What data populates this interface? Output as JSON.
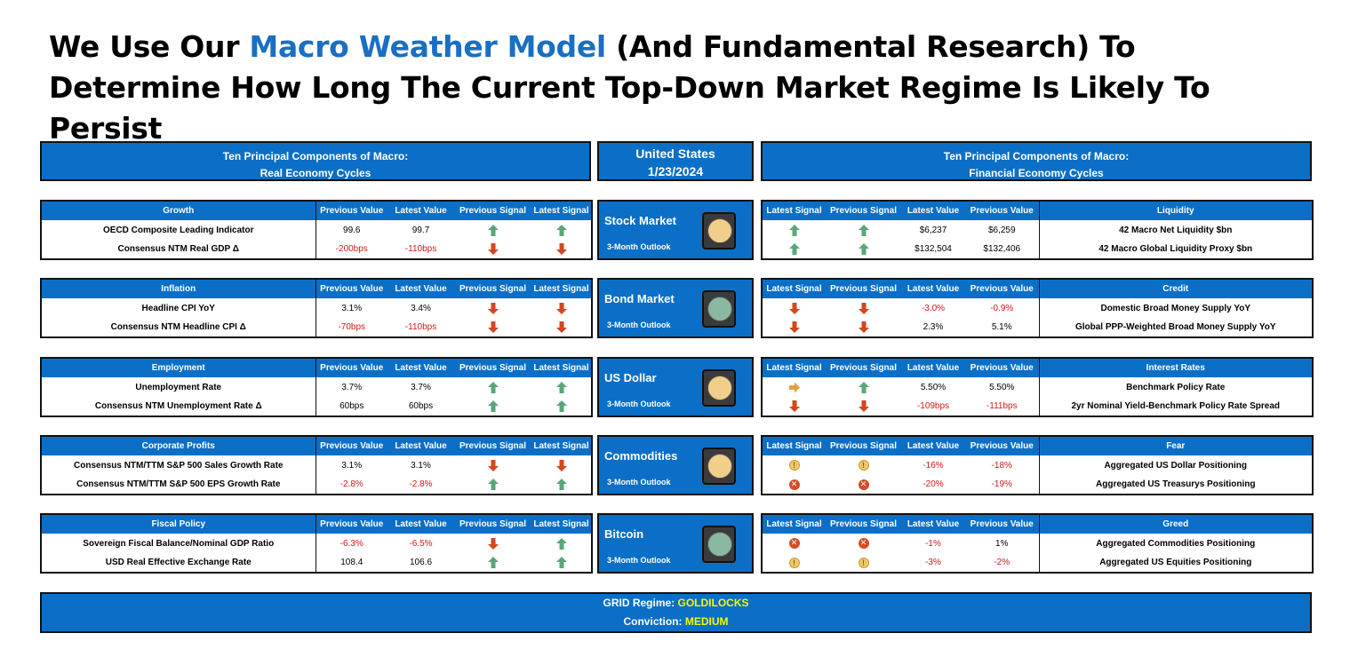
{
  "title": {
    "pre": "We Use Our ",
    "highlight": "Macro Weather Model",
    "post1": " (And Fundamental Research) To",
    "line2": "Determine How Long The Current Top-Down Market Regime Is Likely To Persist"
  },
  "headers": {
    "left_l1": "Ten Principal Components of Macro:",
    "left_l2": "Real Economy Cycles",
    "center_l1": "United States",
    "center_l2": "1/23/2024",
    "right_l1": "Ten Principal Components of Macro:",
    "right_l2": "Financial Economy Cycles"
  },
  "col_headers": {
    "prev_value": "Previous Value",
    "latest_value": "Latest Value",
    "prev_signal": "Previous Signal",
    "latest_signal": "Latest Signal"
  },
  "colors": {
    "accent": "#0b6fc7",
    "up": "#5aa67a",
    "down": "#d4461e",
    "neutral": "#e0a040",
    "negative_text": "#d01818",
    "regime_value": "#f7f700"
  },
  "left_panels": [
    {
      "category": "Growth",
      "rows": [
        {
          "label": "OECD Composite Leading Indicator",
          "prev": "99.6",
          "latest": "99.7",
          "prev_signal": "up",
          "latest_signal": "up",
          "prev_neg": false,
          "latest_neg": false
        },
        {
          "label": "Consensus NTM Real GDP Δ",
          "prev": "-200bps",
          "latest": "-110bps",
          "prev_signal": "down",
          "latest_signal": "down",
          "prev_neg": true,
          "latest_neg": true
        }
      ]
    },
    {
      "category": "Inflation",
      "rows": [
        {
          "label": "Headline CPI YoY",
          "prev": "3.1%",
          "latest": "3.4%",
          "prev_signal": "down",
          "latest_signal": "down",
          "prev_neg": false,
          "latest_neg": false
        },
        {
          "label": "Consensus NTM Headline CPI Δ",
          "prev": "-70bps",
          "latest": "-110bps",
          "prev_signal": "down",
          "latest_signal": "down",
          "prev_neg": true,
          "latest_neg": true
        }
      ]
    },
    {
      "category": "Employment",
      "rows": [
        {
          "label": "Unemployment Rate",
          "prev": "3.7%",
          "latest": "3.7%",
          "prev_signal": "up",
          "latest_signal": "up",
          "prev_neg": false,
          "latest_neg": false
        },
        {
          "label": "Consensus NTM Unemployment Rate Δ",
          "prev": "60bps",
          "latest": "60bps",
          "prev_signal": "up",
          "latest_signal": "up",
          "prev_neg": false,
          "latest_neg": false
        }
      ]
    },
    {
      "category": "Corporate Profits",
      "rows": [
        {
          "label": "Consensus NTM/TTM S&P 500 Sales Growth Rate",
          "prev": "3.1%",
          "latest": "3.1%",
          "prev_signal": "down",
          "latest_signal": "down",
          "prev_neg": false,
          "latest_neg": false
        },
        {
          "label": "Consensus NTM/TTM S&P 500 EPS Growth Rate",
          "prev": "-2.8%",
          "latest": "-2.8%",
          "prev_signal": "up",
          "latest_signal": "up",
          "prev_neg": true,
          "latest_neg": true
        }
      ]
    },
    {
      "category": "Fiscal Policy",
      "rows": [
        {
          "label": "Sovereign Fiscal Balance/Nominal GDP Ratio",
          "prev": "-6.3%",
          "latest": "-6.5%",
          "prev_signal": "down",
          "latest_signal": "up",
          "prev_neg": true,
          "latest_neg": true
        },
        {
          "label": "USD Real Effective Exchange Rate",
          "prev": "108.4",
          "latest": "106.6",
          "prev_signal": "up",
          "latest_signal": "up",
          "prev_neg": false,
          "latest_neg": false
        }
      ]
    }
  ],
  "markets": [
    {
      "name": "Stock Market",
      "outlook": "3-Month Outlook",
      "light": "#f1cf8a"
    },
    {
      "name": "Bond Market",
      "outlook": "3-Month Outlook",
      "light": "#8ab8a0"
    },
    {
      "name": "US Dollar",
      "outlook": "3-Month Outlook",
      "light": "#f1cf8a"
    },
    {
      "name": "Commodities",
      "outlook": "3-Month Outlook",
      "light": "#f1cf8a"
    },
    {
      "name": "Bitcoin",
      "outlook": "3-Month Outlook",
      "light": "#8ab8a0"
    }
  ],
  "right_panels": [
    {
      "category": "Liquidity",
      "rows": [
        {
          "latest_signal": "up",
          "prev_signal": "up",
          "latest": "$6,237",
          "prev": "$6,259",
          "label": "42 Macro Net Liquidity $bn",
          "latest_neg": false,
          "prev_neg": false
        },
        {
          "latest_signal": "up",
          "prev_signal": "up",
          "latest": "$132,504",
          "prev": "$132,406",
          "label": "42 Macro Global Liquidity Proxy $bn",
          "latest_neg": false,
          "prev_neg": false
        }
      ]
    },
    {
      "category": "Credit",
      "rows": [
        {
          "latest_signal": "down",
          "prev_signal": "down",
          "latest": "-3.0%",
          "prev": "-0.9%",
          "label": "Domestic Broad Money Supply YoY",
          "latest_neg": true,
          "prev_neg": true
        },
        {
          "latest_signal": "down",
          "prev_signal": "down",
          "latest": "2.3%",
          "prev": "5.1%",
          "label": "Global PPP-Weighted Broad Money Supply YoY",
          "latest_neg": false,
          "prev_neg": false
        }
      ]
    },
    {
      "category": "Interest Rates",
      "rows": [
        {
          "latest_signal": "right",
          "prev_signal": "up",
          "latest": "5.50%",
          "prev": "5.50%",
          "label": "Benchmark Policy Rate",
          "latest_neg": false,
          "prev_neg": false
        },
        {
          "latest_signal": "down",
          "prev_signal": "down",
          "latest": "-109bps",
          "prev": "-111bps",
          "label": "2yr Nominal Yield-Benchmark Policy Rate Spread",
          "latest_neg": true,
          "prev_neg": true
        }
      ]
    },
    {
      "category": "Fear",
      "rows": [
        {
          "latest_signal": "warn",
          "prev_signal": "warn",
          "latest": "-16%",
          "prev": "-18%",
          "label": "Aggregated US Dollar Positioning",
          "latest_neg": true,
          "prev_neg": true
        },
        {
          "latest_signal": "x",
          "prev_signal": "x",
          "latest": "-20%",
          "prev": "-19%",
          "label": "Aggregated US Treasurys Positioning",
          "latest_neg": true,
          "prev_neg": true
        }
      ]
    },
    {
      "category": "Greed",
      "rows": [
        {
          "latest_signal": "x",
          "prev_signal": "x",
          "latest": "-1%",
          "prev": "1%",
          "label": "Aggregated Commodities Positioning",
          "latest_neg": true,
          "prev_neg": false
        },
        {
          "latest_signal": "warn",
          "prev_signal": "warn",
          "latest": "-3%",
          "prev": "-2%",
          "label": "Aggregated US Equities Positioning",
          "latest_neg": true,
          "prev_neg": true
        }
      ]
    }
  ],
  "regime": {
    "label": "GRID Regime:",
    "value": "GOLDILOCKS",
    "conviction_label": "Conviction:",
    "conviction_value": "MEDIUM"
  }
}
